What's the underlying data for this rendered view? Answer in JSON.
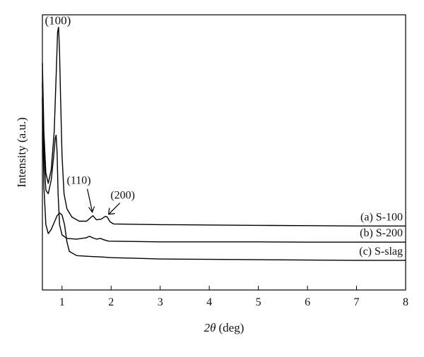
{
  "chart_data": {
    "type": "line",
    "title": "",
    "xlabel": "2θ (deg)",
    "xlabel_var": "2θ",
    "xlabel_unit": "(deg)",
    "ylabel": "Intensity (a.u.)",
    "xlim": [
      0.6,
      8
    ],
    "x_ticks": [
      1,
      2,
      3,
      4,
      5,
      6,
      7,
      8
    ],
    "y_ticks": [],
    "grid": false,
    "legend": "none",
    "line_color": "#000000",
    "series": [
      {
        "name": "(a) S-100",
        "points": [
          [
            0.6,
            3.3
          ],
          [
            0.63,
            2.3
          ],
          [
            0.67,
            1.7
          ],
          [
            0.72,
            1.55
          ],
          [
            0.78,
            1.75
          ],
          [
            0.84,
            2.3
          ],
          [
            0.88,
            3.1
          ],
          [
            0.91,
            3.75
          ],
          [
            0.93,
            3.82
          ],
          [
            0.95,
            3.45
          ],
          [
            0.97,
            2.8
          ],
          [
            1.0,
            1.95
          ],
          [
            1.04,
            1.4
          ],
          [
            1.1,
            1.18
          ],
          [
            1.2,
            1.06
          ],
          [
            1.35,
            1.0
          ],
          [
            1.5,
            1.0
          ],
          [
            1.58,
            1.05
          ],
          [
            1.63,
            1.08
          ],
          [
            1.7,
            1.02
          ],
          [
            1.8,
            1.03
          ],
          [
            1.88,
            1.07
          ],
          [
            1.92,
            1.06
          ],
          [
            1.98,
            0.99
          ],
          [
            2.05,
            0.96
          ],
          [
            2.5,
            0.955
          ],
          [
            3,
            0.95
          ],
          [
            4,
            0.945
          ],
          [
            5,
            0.94
          ],
          [
            6,
            0.935
          ],
          [
            7,
            0.93
          ],
          [
            8,
            0.93
          ]
        ]
      },
      {
        "name": "(b) S-200",
        "points": [
          [
            0.6,
            3.0
          ],
          [
            0.63,
            2.0
          ],
          [
            0.67,
            1.45
          ],
          [
            0.72,
            1.4
          ],
          [
            0.78,
            1.6
          ],
          [
            0.83,
            1.95
          ],
          [
            0.86,
            2.2
          ],
          [
            0.88,
            2.25
          ],
          [
            0.9,
            2.0
          ],
          [
            0.92,
            1.4
          ],
          [
            0.95,
            0.95
          ],
          [
            1.0,
            0.8
          ],
          [
            1.1,
            0.75
          ],
          [
            1.3,
            0.74
          ],
          [
            1.5,
            0.76
          ],
          [
            1.56,
            0.78
          ],
          [
            1.62,
            0.76
          ],
          [
            1.7,
            0.74
          ],
          [
            1.78,
            0.75
          ],
          [
            1.85,
            0.73
          ],
          [
            1.95,
            0.71
          ],
          [
            2.5,
            0.705
          ],
          [
            3,
            0.7
          ],
          [
            4,
            0.7
          ],
          [
            5,
            0.7
          ],
          [
            6,
            0.695
          ],
          [
            7,
            0.695
          ],
          [
            8,
            0.695
          ]
        ]
      },
      {
        "name": "(c) S-slag",
        "points": [
          [
            0.6,
            2.8
          ],
          [
            0.63,
            1.5
          ],
          [
            0.67,
            0.95
          ],
          [
            0.72,
            0.82
          ],
          [
            0.78,
            0.88
          ],
          [
            0.84,
            0.98
          ],
          [
            0.9,
            1.08
          ],
          [
            0.95,
            1.12
          ],
          [
            1.0,
            1.09
          ],
          [
            1.05,
            0.95
          ],
          [
            1.1,
            0.7
          ],
          [
            1.15,
            0.56
          ],
          [
            1.3,
            0.5
          ],
          [
            1.5,
            0.49
          ],
          [
            1.8,
            0.48
          ],
          [
            2,
            0.47
          ],
          [
            2.5,
            0.46
          ],
          [
            3,
            0.45
          ],
          [
            4,
            0.445
          ],
          [
            5,
            0.44
          ],
          [
            6,
            0.435
          ],
          [
            7,
            0.43
          ],
          [
            8,
            0.43
          ]
        ]
      }
    ],
    "annotations": [
      {
        "text": "(100)",
        "x": 0.93,
        "y": 3.82
      },
      {
        "text": "(110)",
        "x": 1.63,
        "y": 1.08
      },
      {
        "text": "(200)",
        "x": 1.92,
        "y": 1.06
      }
    ]
  }
}
